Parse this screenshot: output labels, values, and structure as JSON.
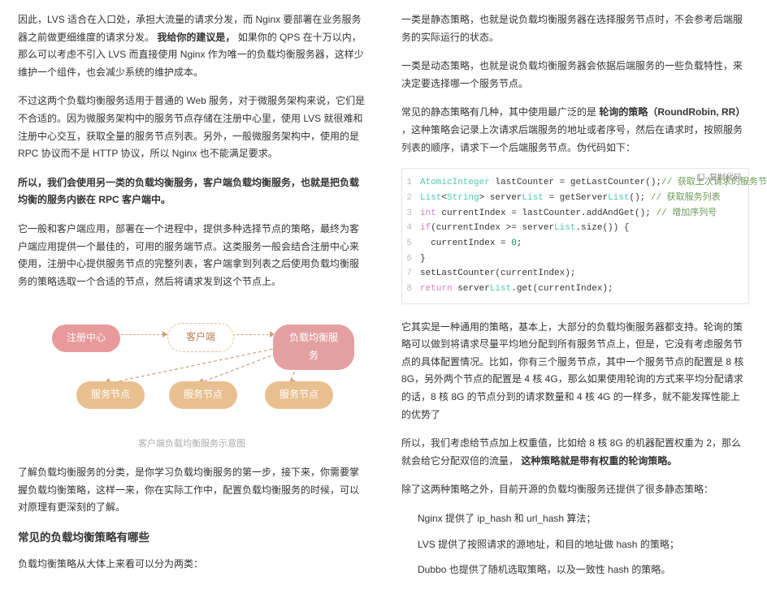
{
  "left": {
    "p1a": "因此，LVS 适合在入口处，承担大流量的请求分发，而 Nginx 要部署在业务服务器之前做更细维度的请求分发。",
    "p1b": "我给你的建议是，",
    "p1c": "如果你的 QPS 在十万以内，那么可以考虑不引入 LVS 而直接使用 Nginx 作为唯一的负载均衡服务器，这样少维护一个组件，也会减少系统的维护成本。",
    "p2": "不过这两个负载均衡服务适用于普通的 Web 服务，对于微服务架构来说，它们是不合适的。因为微服务架构中的服务节点存储在注册中心里，使用 LVS 就很难和注册中心交互，获取全量的服务节点列表。另外，一般微服务架构中，使用的是 RPC 协议而不是 HTTP 协议，所以 Nginx 也不能满足要求。",
    "p3": "所以，我们会使用另一类的负载均衡服务，客户端负载均衡服务，也就是把负载均衡的服务内嵌在 RPC 客户端中。",
    "p4": "它一般和客户端应用，部署在一个进程中，提供多种选择节点的策略，最终为客户端应用提供一个最佳的，可用的服务端节点。这类服务一般会结合注册中心来使用，注册中心提供服务节点的完整列表，客户端拿到列表之后使用负载均衡服务的策略选取一个合适的节点，然后将请求发到这个节点上。",
    "diagram": {
      "reg": "注册中心",
      "client": "客户端",
      "lb": "负载均衡服务",
      "svc1": "服务节点",
      "svc2": "服务节点",
      "svc3": "服务节点",
      "caption": "客户端负载均衡服务示意图",
      "colors": {
        "reg_bg": "#e89a9a",
        "client_border": "#e8c090",
        "client_text": "#b97d52",
        "lb_bg": "#e4a0a0",
        "svc_bg": "#e8c090",
        "arrow": "#c9a27a"
      }
    },
    "p5": "了解负载均衡服务的分类，是你学习负载均衡服务的第一步，接下来，你需要掌握负载均衡策略，这样一来，你在实际工作中，配置负载均衡服务的时候，可以对原理有更深刻的了解。",
    "h1": "常见的负载均衡策略有哪些",
    "p6": "负载均衡策略从大体上来看可以分为两类："
  },
  "right": {
    "p1": "一类是静态策略，也就是说负载均衡服务器在选择服务节点时，不会参考后端服务的实际运行的状态。",
    "p2": "一类是动态策略，也就是说负载均衡服务器会依据后端服务的一些负载特性，来决定要选择哪一个服务节点。",
    "p3a": "常见的静态策略有几种，其中使用最广泛的是",
    "p3b": "轮询的策略（RoundRobin, RR）",
    "p3c": "，这种策略会记录上次请求后端服务的地址或者序号，然后在请求时，按照服务列表的顺序，请求下一个后端服务节点。伪代码如下：",
    "code": {
      "copy_label": "复制代码",
      "lines": [
        {
          "n": "1",
          "t": "AtomicInteger lastCounter = getLastCounter();// 获取上次请求的服务节点的序号"
        },
        {
          "n": "2",
          "t": "List<String> serverList = getServerList(); // 获取服务列表"
        },
        {
          "n": "3",
          "t": "int currentIndex = lastCounter.addAndGet(); // 增加序列号"
        },
        {
          "n": "4",
          "t": "if(currentIndex >= serverList.size()) {"
        },
        {
          "n": "5",
          "t": "  currentIndex = 0;"
        },
        {
          "n": "6",
          "t": "}"
        },
        {
          "n": "7",
          "t": "setLastCounter(currentIndex);"
        },
        {
          "n": "8",
          "t": "return serverList.get(currentIndex);"
        }
      ]
    },
    "p4": "它其实是一种通用的策略，基本上，大部分的负载均衡服务器都支持。轮询的策略可以做到将请求尽量平均地分配到所有服务节点上，但是，它没有考虑服务节点的具体配置情况。比如，你有三个服务节点，其中一个服务节点的配置是 8 核 8G，另外两个节点的配置是 4 核 4G，那么如果使用轮询的方式来平均分配请求的话，8 核 8G 的节点分到的请求数量和 4 核 4G 的一样多，就不能发挥性能上的优势了",
    "p5a": "所以，我们考虑给节点加上权重值，比如给 8 核 8G 的机器配置权重为 2，那么就会给它分配双倍的流量，",
    "p5b": "这种策略就是带有权重的轮询策略。",
    "p6": "除了这两种策略之外，目前开源的负载均衡服务还提供了很多静态策略：",
    "list": {
      "i1": "Nginx 提供了 ip_hash 和 url_hash 算法；",
      "i2": "LVS 提供了按照请求的源地址，和目的地址做 hash 的策略；",
      "i3": "Dubbo 也提供了随机选取策略，以及一致性 hash 的策略。"
    }
  }
}
